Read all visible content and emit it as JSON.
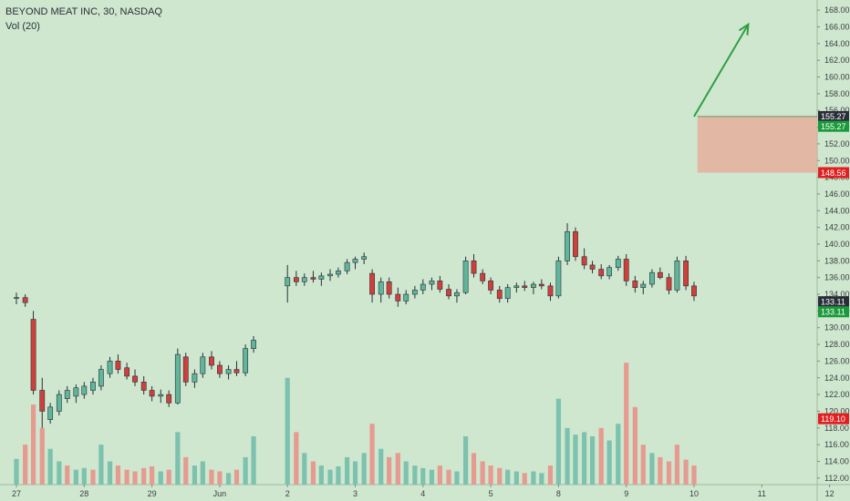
{
  "header": {
    "symbol_line": "BEYOND MEAT INC, 30, NASDAQ",
    "volume_line": "Vol (20)"
  },
  "colors": {
    "background": "#cfe7cf",
    "up": "#5fb69b",
    "down": "#d0403b",
    "vol_up": "#7cc2ae",
    "vol_down": "#e69a90",
    "arrow": "#2ea043",
    "zone": "#e8a895",
    "price_axis_bg": "#cfe7cf"
  },
  "chart_data": {
    "type": "candlestick",
    "title": "BEYOND MEAT INC, 30, NASDAQ",
    "y_ticks": [
      "112.00",
      "114.00",
      "116.00",
      "118.00",
      "120.00",
      "122.00",
      "124.00",
      "126.00",
      "128.00",
      "130.00",
      "132.00",
      "134.00",
      "136.00",
      "138.00",
      "140.00",
      "142.00",
      "144.00",
      "146.00",
      "148.00",
      "150.00",
      "152.00",
      "154.00",
      "156.00",
      "158.00",
      "160.00",
      "162.00",
      "164.00",
      "166.00",
      "168.00"
    ],
    "ylim": [
      111,
      169
    ],
    "x_ticks": [
      "27",
      "28",
      "29",
      "Jun",
      "2",
      "3",
      "4",
      "5",
      "8",
      "9",
      "10",
      "11",
      "12"
    ],
    "price_badges": [
      {
        "label": "155.27",
        "value": 155.27,
        "color": "#2a2e39"
      },
      {
        "label": "155.27",
        "value": 154.1,
        "color": "#1a9a3a"
      },
      {
        "label": "148.56",
        "value": 148.56,
        "color": "#e02020"
      },
      {
        "label": "133.11",
        "value": 133.11,
        "color": "#2a2e39"
      },
      {
        "label": "133.11",
        "value": 131.9,
        "color": "#1a9a3a"
      },
      {
        "label": "119.10",
        "value": 119.1,
        "color": "#e02020"
      }
    ],
    "zone": {
      "day_start": 10.05,
      "day_end": 12.0,
      "top": 155.27,
      "bottom": 148.56
    },
    "arrow": {
      "from_day": 10.0,
      "from_price": 155.27,
      "to_day": 10.8,
      "to_price": 166.3
    },
    "candles": [
      {
        "day": 0.0,
        "o": 133.5,
        "h": 134.2,
        "l": 132.8,
        "c": 133.6
      },
      {
        "day": 0.13,
        "o": 133.6,
        "h": 134.0,
        "l": 132.5,
        "c": 133.0
      },
      {
        "day": 0.25,
        "o": 131.0,
        "h": 132.0,
        "l": 122.0,
        "c": 122.5
      },
      {
        "day": 0.38,
        "o": 122.5,
        "h": 124.0,
        "l": 118.0,
        "c": 120.0
      },
      {
        "day": 0.5,
        "o": 119.0,
        "h": 121.0,
        "l": 118.5,
        "c": 120.5
      },
      {
        "day": 0.63,
        "o": 120.0,
        "h": 122.5,
        "l": 119.5,
        "c": 122.0
      },
      {
        "day": 0.75,
        "o": 121.5,
        "h": 123.0,
        "l": 121.0,
        "c": 122.5
      },
      {
        "day": 0.88,
        "o": 121.8,
        "h": 123.2,
        "l": 121.0,
        "c": 122.8
      },
      {
        "day": 1.0,
        "o": 122.0,
        "h": 123.5,
        "l": 121.5,
        "c": 123.0
      },
      {
        "day": 1.13,
        "o": 122.5,
        "h": 124.0,
        "l": 122.0,
        "c": 123.5
      },
      {
        "day": 1.25,
        "o": 123.0,
        "h": 125.5,
        "l": 122.5,
        "c": 125.0
      },
      {
        "day": 1.38,
        "o": 124.5,
        "h": 126.5,
        "l": 124.0,
        "c": 126.0
      },
      {
        "day": 1.5,
        "o": 126.0,
        "h": 126.8,
        "l": 124.5,
        "c": 125.0
      },
      {
        "day": 1.63,
        "o": 125.2,
        "h": 125.8,
        "l": 123.8,
        "c": 124.2
      },
      {
        "day": 1.75,
        "o": 124.2,
        "h": 125.0,
        "l": 123.0,
        "c": 123.5
      },
      {
        "day": 1.88,
        "o": 123.5,
        "h": 124.2,
        "l": 122.0,
        "c": 122.5
      },
      {
        "day": 2.0,
        "o": 122.5,
        "h": 123.0,
        "l": 121.2,
        "c": 121.8
      },
      {
        "day": 2.13,
        "o": 121.8,
        "h": 122.6,
        "l": 121.0,
        "c": 122.0
      },
      {
        "day": 2.25,
        "o": 122.0,
        "h": 122.5,
        "l": 120.5,
        "c": 121.0
      },
      {
        "day": 2.38,
        "o": 121.0,
        "h": 127.5,
        "l": 120.8,
        "c": 126.8
      },
      {
        "day": 2.5,
        "o": 126.5,
        "h": 127.0,
        "l": 123.0,
        "c": 123.5
      },
      {
        "day": 2.63,
        "o": 123.5,
        "h": 125.0,
        "l": 122.8,
        "c": 124.5
      },
      {
        "day": 2.75,
        "o": 124.5,
        "h": 127.0,
        "l": 124.0,
        "c": 126.5
      },
      {
        "day": 2.88,
        "o": 126.5,
        "h": 127.2,
        "l": 125.0,
        "c": 125.5
      },
      {
        "day": 3.0,
        "o": 125.5,
        "h": 126.0,
        "l": 124.0,
        "c": 124.5
      },
      {
        "day": 3.13,
        "o": 124.5,
        "h": 125.5,
        "l": 123.8,
        "c": 125.0
      },
      {
        "day": 3.25,
        "o": 125.0,
        "h": 126.0,
        "l": 124.2,
        "c": 124.6
      },
      {
        "day": 3.38,
        "o": 124.6,
        "h": 128.0,
        "l": 124.2,
        "c": 127.5
      },
      {
        "day": 3.5,
        "o": 127.5,
        "h": 129.0,
        "l": 127.0,
        "c": 128.5
      },
      {
        "day": 4.0,
        "o": 135.0,
        "h": 137.5,
        "l": 133.0,
        "c": 136.0
      },
      {
        "day": 4.13,
        "o": 136.0,
        "h": 136.8,
        "l": 135.0,
        "c": 135.5
      },
      {
        "day": 4.25,
        "o": 135.5,
        "h": 136.5,
        "l": 135.0,
        "c": 136.0
      },
      {
        "day": 4.38,
        "o": 136.0,
        "h": 136.8,
        "l": 135.4,
        "c": 135.8
      },
      {
        "day": 4.5,
        "o": 135.8,
        "h": 136.6,
        "l": 135.0,
        "c": 136.2
      },
      {
        "day": 4.63,
        "o": 136.2,
        "h": 137.0,
        "l": 135.6,
        "c": 136.4
      },
      {
        "day": 4.75,
        "o": 136.4,
        "h": 137.2,
        "l": 136.0,
        "c": 136.8
      },
      {
        "day": 4.88,
        "o": 136.8,
        "h": 138.2,
        "l": 136.4,
        "c": 137.8
      },
      {
        "day": 5.0,
        "o": 137.8,
        "h": 138.5,
        "l": 137.0,
        "c": 138.2
      },
      {
        "day": 5.13,
        "o": 138.2,
        "h": 139.0,
        "l": 137.6,
        "c": 138.5
      },
      {
        "day": 5.25,
        "o": 136.5,
        "h": 137.0,
        "l": 133.0,
        "c": 134.0
      },
      {
        "day": 5.38,
        "o": 134.0,
        "h": 136.0,
        "l": 133.0,
        "c": 135.5
      },
      {
        "day": 5.5,
        "o": 135.5,
        "h": 136.0,
        "l": 133.5,
        "c": 134.0
      },
      {
        "day": 5.63,
        "o": 134.0,
        "h": 134.8,
        "l": 132.5,
        "c": 133.2
      },
      {
        "day": 5.75,
        "o": 133.2,
        "h": 134.5,
        "l": 132.8,
        "c": 134.0
      },
      {
        "day": 5.88,
        "o": 134.0,
        "h": 135.0,
        "l": 133.5,
        "c": 134.5
      },
      {
        "day": 6.0,
        "o": 134.5,
        "h": 135.8,
        "l": 134.0,
        "c": 135.2
      },
      {
        "day": 6.13,
        "o": 135.2,
        "h": 136.0,
        "l": 134.5,
        "c": 135.6
      },
      {
        "day": 6.25,
        "o": 135.6,
        "h": 136.2,
        "l": 134.2,
        "c": 134.6
      },
      {
        "day": 6.38,
        "o": 134.6,
        "h": 135.2,
        "l": 133.4,
        "c": 133.8
      },
      {
        "day": 6.5,
        "o": 133.8,
        "h": 134.6,
        "l": 133.0,
        "c": 134.2
      },
      {
        "day": 6.63,
        "o": 134.2,
        "h": 138.5,
        "l": 134.0,
        "c": 138.0
      },
      {
        "day": 6.75,
        "o": 138.0,
        "h": 138.8,
        "l": 136.0,
        "c": 136.5
      },
      {
        "day": 6.88,
        "o": 136.5,
        "h": 137.0,
        "l": 135.2,
        "c": 135.6
      },
      {
        "day": 7.0,
        "o": 135.6,
        "h": 136.0,
        "l": 134.0,
        "c": 134.5
      },
      {
        "day": 7.13,
        "o": 134.5,
        "h": 135.0,
        "l": 133.0,
        "c": 133.5
      },
      {
        "day": 7.25,
        "o": 133.5,
        "h": 135.2,
        "l": 133.0,
        "c": 134.8
      },
      {
        "day": 7.38,
        "o": 134.8,
        "h": 135.4,
        "l": 134.2,
        "c": 135.0
      },
      {
        "day": 7.5,
        "o": 135.0,
        "h": 135.6,
        "l": 134.4,
        "c": 134.8
      },
      {
        "day": 7.63,
        "o": 134.8,
        "h": 135.5,
        "l": 134.0,
        "c": 135.2
      },
      {
        "day": 7.75,
        "o": 135.2,
        "h": 135.8,
        "l": 134.6,
        "c": 135.0
      },
      {
        "day": 7.88,
        "o": 135.0,
        "h": 135.4,
        "l": 133.2,
        "c": 133.8
      },
      {
        "day": 8.0,
        "o": 133.8,
        "h": 138.5,
        "l": 133.5,
        "c": 138.0
      },
      {
        "day": 8.13,
        "o": 138.0,
        "h": 142.5,
        "l": 137.5,
        "c": 141.5
      },
      {
        "day": 8.25,
        "o": 141.5,
        "h": 142.0,
        "l": 138.0,
        "c": 138.5
      },
      {
        "day": 8.38,
        "o": 138.5,
        "h": 139.5,
        "l": 137.0,
        "c": 137.5
      },
      {
        "day": 8.5,
        "o": 137.5,
        "h": 138.0,
        "l": 136.5,
        "c": 137.0
      },
      {
        "day": 8.63,
        "o": 137.0,
        "h": 137.6,
        "l": 135.8,
        "c": 136.2
      },
      {
        "day": 8.75,
        "o": 136.2,
        "h": 137.5,
        "l": 135.8,
        "c": 137.2
      },
      {
        "day": 8.88,
        "o": 137.2,
        "h": 138.6,
        "l": 136.8,
        "c": 138.2
      },
      {
        "day": 9.0,
        "o": 138.2,
        "h": 138.8,
        "l": 135.0,
        "c": 135.6
      },
      {
        "day": 9.13,
        "o": 135.6,
        "h": 136.2,
        "l": 134.2,
        "c": 134.8
      },
      {
        "day": 9.25,
        "o": 134.8,
        "h": 135.6,
        "l": 134.0,
        "c": 135.2
      },
      {
        "day": 9.38,
        "o": 135.2,
        "h": 137.0,
        "l": 134.8,
        "c": 136.6
      },
      {
        "day": 9.5,
        "o": 136.6,
        "h": 137.2,
        "l": 135.8,
        "c": 136.0
      },
      {
        "day": 9.63,
        "o": 136.0,
        "h": 136.5,
        "l": 134.0,
        "c": 134.5
      },
      {
        "day": 9.75,
        "o": 134.5,
        "h": 138.5,
        "l": 134.2,
        "c": 138.0
      },
      {
        "day": 9.88,
        "o": 138.0,
        "h": 138.6,
        "l": 134.5,
        "c": 135.0
      },
      {
        "day": 10.0,
        "o": 135.0,
        "h": 135.5,
        "l": 133.2,
        "c": 133.8
      }
    ],
    "volumes": [
      {
        "day": 0.0,
        "v": 114.3,
        "up": true
      },
      {
        "day": 0.13,
        "v": 116.0,
        "up": false
      },
      {
        "day": 0.25,
        "v": 120.8,
        "up": false
      },
      {
        "day": 0.38,
        "v": 118.0,
        "up": false
      },
      {
        "day": 0.5,
        "v": 115.5,
        "up": true
      },
      {
        "day": 0.63,
        "v": 114.0,
        "up": true
      },
      {
        "day": 0.75,
        "v": 113.5,
        "up": false
      },
      {
        "day": 0.88,
        "v": 113.0,
        "up": true
      },
      {
        "day": 1.0,
        "v": 113.2,
        "up": true
      },
      {
        "day": 1.13,
        "v": 113.0,
        "up": false
      },
      {
        "day": 1.25,
        "v": 116.0,
        "up": true
      },
      {
        "day": 1.38,
        "v": 114.0,
        "up": true
      },
      {
        "day": 1.5,
        "v": 113.5,
        "up": false
      },
      {
        "day": 1.63,
        "v": 113.0,
        "up": false
      },
      {
        "day": 1.75,
        "v": 112.8,
        "up": false
      },
      {
        "day": 1.88,
        "v": 113.2,
        "up": false
      },
      {
        "day": 2.0,
        "v": 113.4,
        "up": false
      },
      {
        "day": 2.13,
        "v": 112.8,
        "up": true
      },
      {
        "day": 2.25,
        "v": 113.0,
        "up": false
      },
      {
        "day": 2.38,
        "v": 117.5,
        "up": true
      },
      {
        "day": 2.5,
        "v": 114.5,
        "up": false
      },
      {
        "day": 2.63,
        "v": 113.5,
        "up": true
      },
      {
        "day": 2.75,
        "v": 114.0,
        "up": true
      },
      {
        "day": 2.88,
        "v": 113.0,
        "up": false
      },
      {
        "day": 3.0,
        "v": 112.8,
        "up": false
      },
      {
        "day": 3.13,
        "v": 112.6,
        "up": true
      },
      {
        "day": 3.25,
        "v": 113.0,
        "up": false
      },
      {
        "day": 3.38,
        "v": 114.5,
        "up": true
      },
      {
        "day": 3.5,
        "v": 117.0,
        "up": true
      },
      {
        "day": 4.0,
        "v": 124.0,
        "up": true
      },
      {
        "day": 4.13,
        "v": 117.5,
        "up": false
      },
      {
        "day": 4.25,
        "v": 115.0,
        "up": true
      },
      {
        "day": 4.38,
        "v": 114.0,
        "up": false
      },
      {
        "day": 4.5,
        "v": 113.5,
        "up": true
      },
      {
        "day": 4.63,
        "v": 113.0,
        "up": true
      },
      {
        "day": 4.75,
        "v": 113.4,
        "up": true
      },
      {
        "day": 4.88,
        "v": 114.5,
        "up": true
      },
      {
        "day": 5.0,
        "v": 114.0,
        "up": true
      },
      {
        "day": 5.13,
        "v": 115.0,
        "up": true
      },
      {
        "day": 5.25,
        "v": 118.5,
        "up": false
      },
      {
        "day": 5.38,
        "v": 115.5,
        "up": true
      },
      {
        "day": 5.5,
        "v": 114.5,
        "up": false
      },
      {
        "day": 5.63,
        "v": 115.0,
        "up": false
      },
      {
        "day": 5.75,
        "v": 114.0,
        "up": true
      },
      {
        "day": 5.88,
        "v": 113.5,
        "up": true
      },
      {
        "day": 6.0,
        "v": 113.2,
        "up": true
      },
      {
        "day": 6.13,
        "v": 113.0,
        "up": true
      },
      {
        "day": 6.25,
        "v": 113.5,
        "up": false
      },
      {
        "day": 6.38,
        "v": 113.0,
        "up": false
      },
      {
        "day": 6.5,
        "v": 112.8,
        "up": true
      },
      {
        "day": 6.63,
        "v": 117.0,
        "up": true
      },
      {
        "day": 6.75,
        "v": 115.0,
        "up": false
      },
      {
        "day": 6.88,
        "v": 114.0,
        "up": false
      },
      {
        "day": 7.0,
        "v": 113.5,
        "up": false
      },
      {
        "day": 7.13,
        "v": 113.2,
        "up": false
      },
      {
        "day": 7.25,
        "v": 113.0,
        "up": true
      },
      {
        "day": 7.38,
        "v": 112.8,
        "up": true
      },
      {
        "day": 7.5,
        "v": 112.6,
        "up": false
      },
      {
        "day": 7.63,
        "v": 112.8,
        "up": true
      },
      {
        "day": 7.75,
        "v": 112.6,
        "up": true
      },
      {
        "day": 7.88,
        "v": 113.5,
        "up": false
      },
      {
        "day": 8.0,
        "v": 121.5,
        "up": true
      },
      {
        "day": 8.13,
        "v": 118.0,
        "up": true
      },
      {
        "day": 8.25,
        "v": 117.2,
        "up": true
      },
      {
        "day": 8.38,
        "v": 117.5,
        "up": true
      },
      {
        "day": 8.5,
        "v": 117.0,
        "up": true
      },
      {
        "day": 8.63,
        "v": 118.0,
        "up": false
      },
      {
        "day": 8.75,
        "v": 116.5,
        "up": true
      },
      {
        "day": 8.88,
        "v": 118.5,
        "up": true
      },
      {
        "day": 9.0,
        "v": 125.8,
        "up": false
      },
      {
        "day": 9.13,
        "v": 120.5,
        "up": false
      },
      {
        "day": 9.25,
        "v": 116.0,
        "up": false
      },
      {
        "day": 9.38,
        "v": 115.0,
        "up": true
      },
      {
        "day": 9.5,
        "v": 114.5,
        "up": false
      },
      {
        "day": 9.63,
        "v": 114.0,
        "up": false
      },
      {
        "day": 9.75,
        "v": 116.0,
        "up": false
      },
      {
        "day": 9.88,
        "v": 114.2,
        "up": false
      },
      {
        "day": 10.0,
        "v": 113.5,
        "up": false
      }
    ]
  }
}
